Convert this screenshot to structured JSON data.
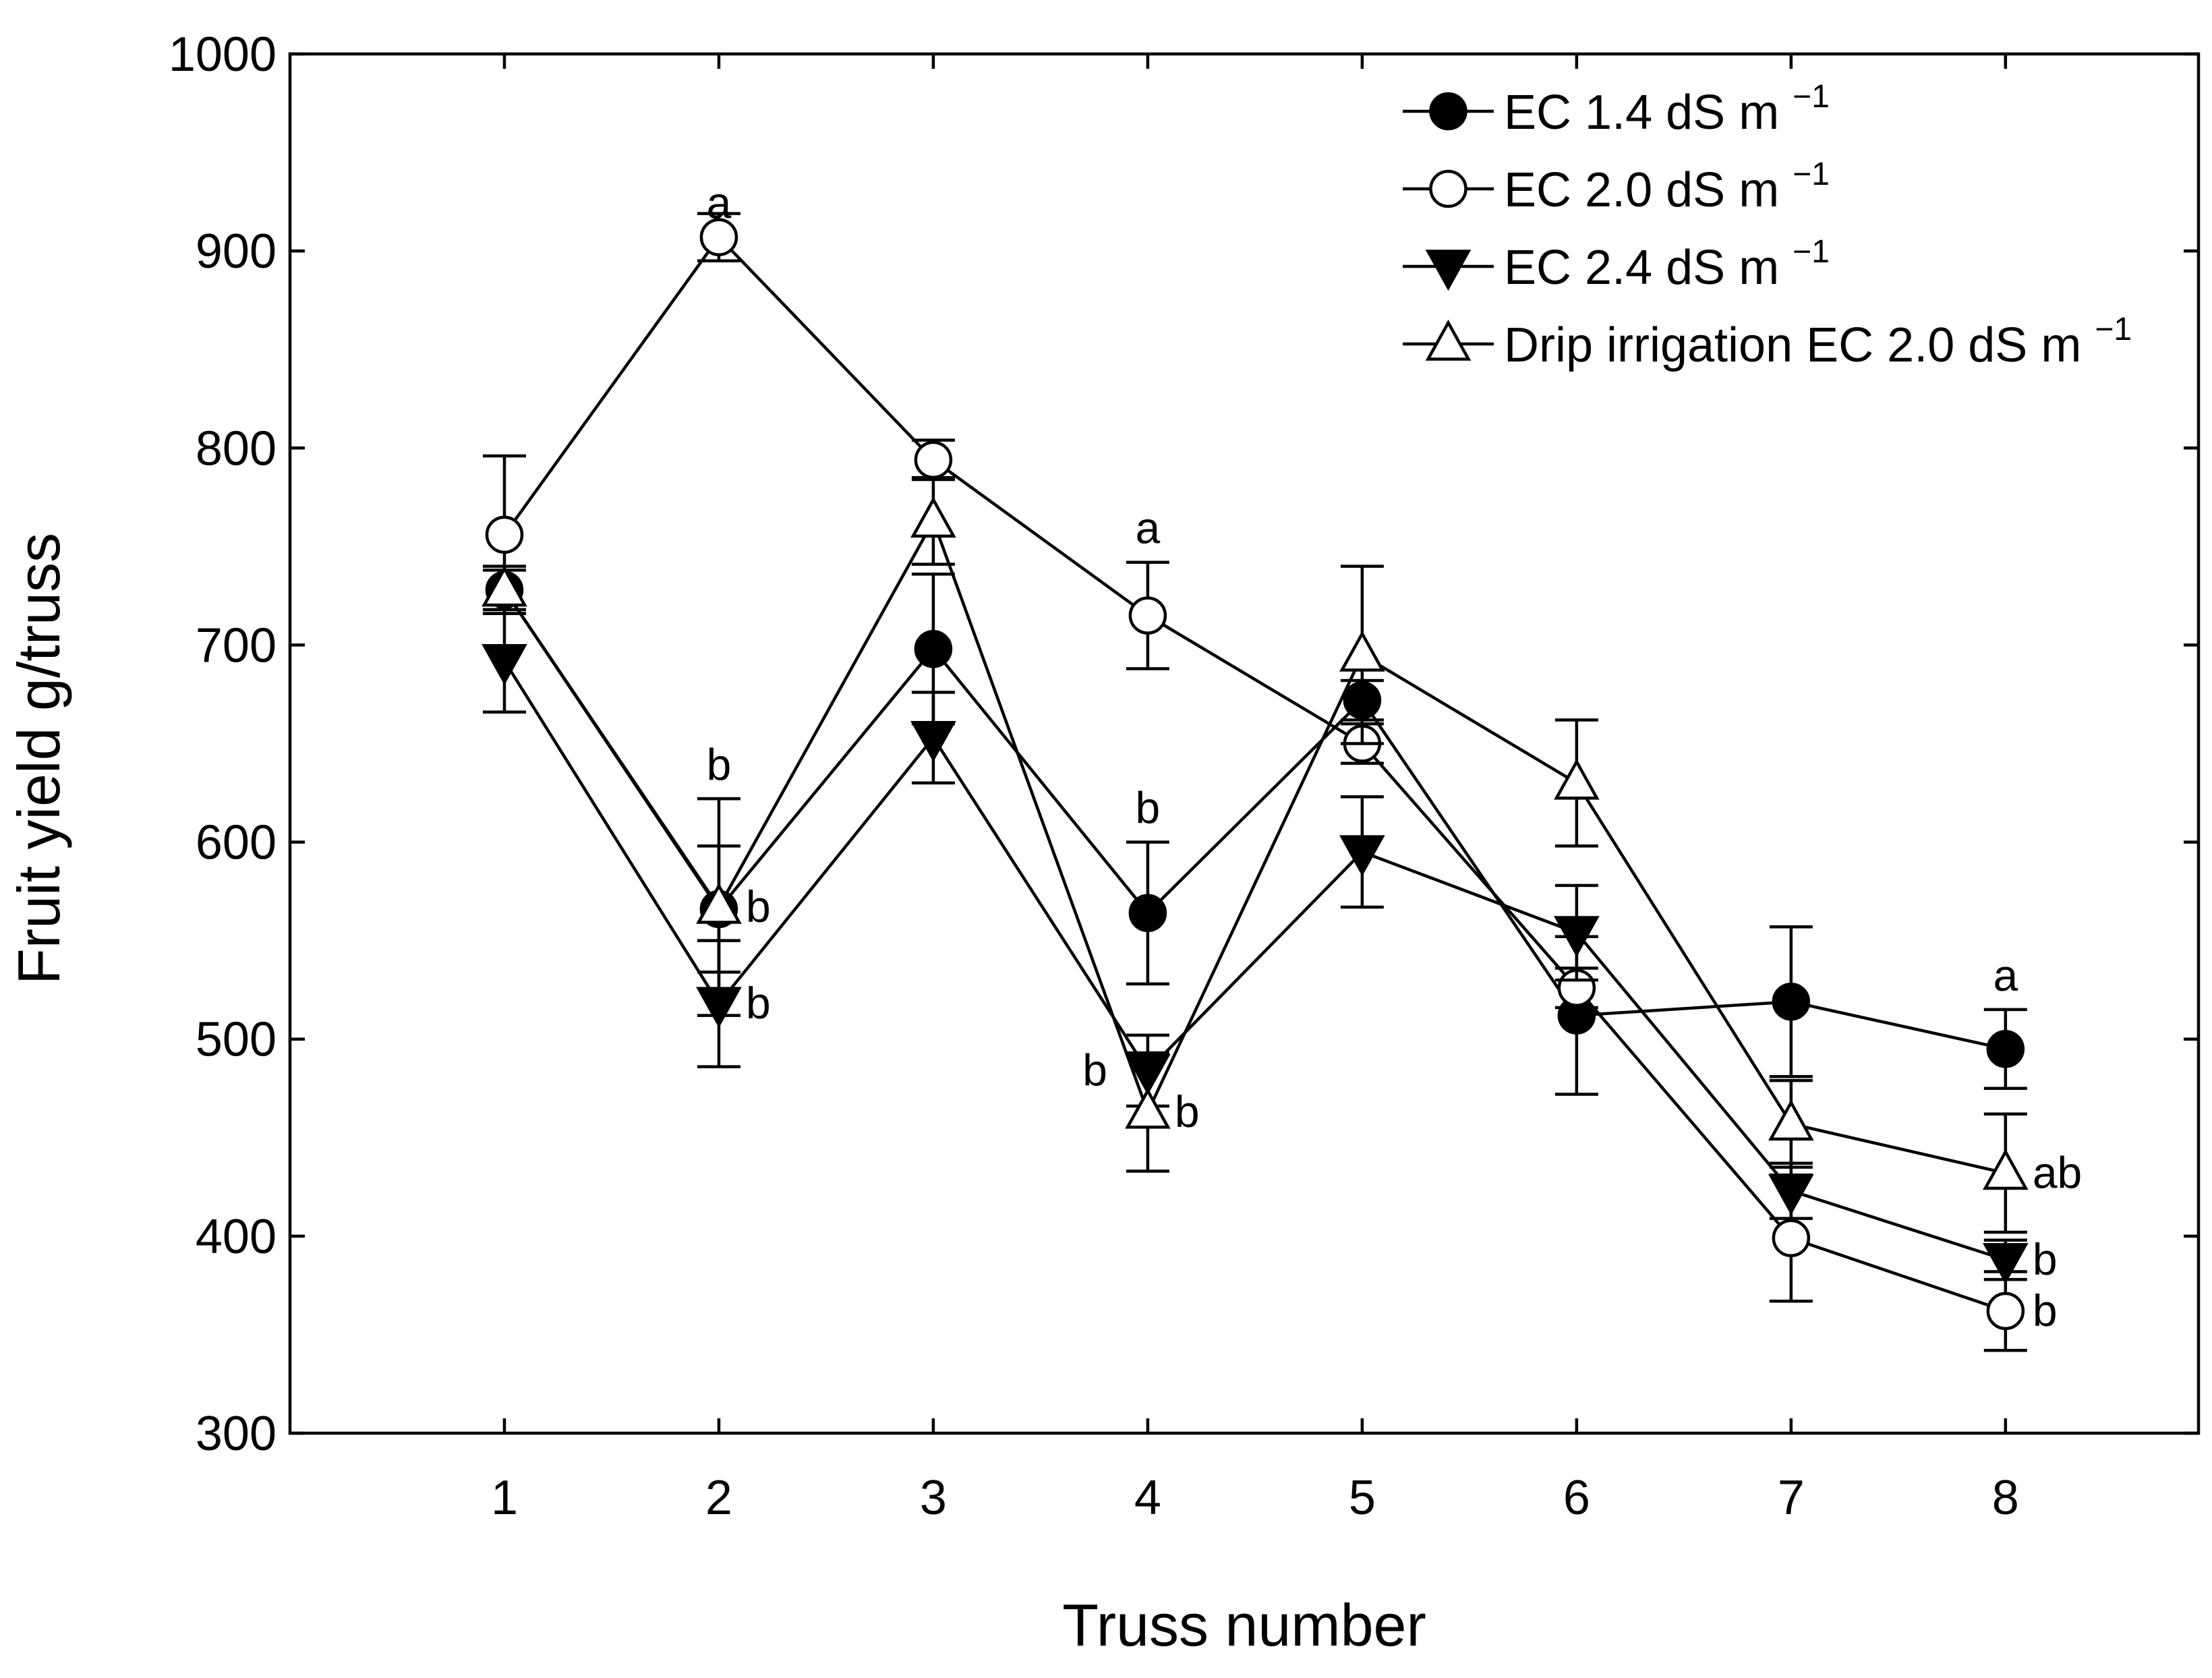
{
  "chart_data": {
    "type": "line",
    "title": "",
    "xlabel": "Truss number",
    "ylabel": "Fruit yield g/truss",
    "x": [
      1,
      2,
      3,
      4,
      5,
      6,
      7,
      8
    ],
    "xlim": [
      0.0,
      8.9
    ],
    "ylim": [
      300,
      1000
    ],
    "yticks": [
      300,
      400,
      500,
      600,
      700,
      800,
      900,
      1000
    ],
    "xticks": [
      1,
      2,
      3,
      4,
      5,
      6,
      7,
      8
    ],
    "grid": false,
    "legend_position": "top-right",
    "series": [
      {
        "name": "EC 1.4 dS m",
        "unit_exponent": "−1",
        "marker": "filled-circle",
        "values": [
          728,
          566,
          698,
          564,
          672,
          512,
          519,
          495
        ],
        "errors": [
          12,
          32,
          38,
          36,
          10,
          40,
          38,
          20
        ]
      },
      {
        "name": "EC 2.0 dS m",
        "unit_exponent": "−1",
        "marker": "open-circle",
        "values": [
          756,
          907,
          794,
          715,
          650,
          526,
          399,
          362
        ],
        "errors": [
          40,
          12,
          10,
          27,
          10,
          10,
          32,
          20
        ]
      },
      {
        "name": "EC 2.4 dS m",
        "unit_exponent": "−1",
        "marker": "filled-triangle-down",
        "values": [
          692,
          518,
          653,
          484,
          595,
          554,
          423,
          388
        ],
        "errors": [
          26,
          32,
          23,
          18,
          28,
          24,
          14,
          10
        ]
      },
      {
        "name": "Drip irrigation EC 2.0 dS m",
        "unit_exponent": "−1",
        "marker": "open-triangle-up",
        "values": [
          728,
          567,
          763,
          463,
          695,
          630,
          457,
          432
        ],
        "errors": [
          10,
          55,
          22,
          30,
          45,
          32,
          22,
          30
        ]
      }
    ],
    "annotations": [
      {
        "x": 2,
        "y": 907,
        "text": "a",
        "placement": "above"
      },
      {
        "x": 2,
        "y": 622,
        "text": "b",
        "placement": "above"
      },
      {
        "x": 2,
        "y": 567,
        "text": "b",
        "placement": "right"
      },
      {
        "x": 2,
        "y": 518,
        "text": "b",
        "placement": "right"
      },
      {
        "x": 4,
        "y": 742,
        "text": "a",
        "placement": "above"
      },
      {
        "x": 4,
        "y": 600,
        "text": "b",
        "placement": "above"
      },
      {
        "x": 4,
        "y": 484,
        "text": "b",
        "placement": "left"
      },
      {
        "x": 4,
        "y": 463,
        "text": "b",
        "placement": "right"
      },
      {
        "x": 8,
        "y": 515,
        "text": "a",
        "placement": "above"
      },
      {
        "x": 8,
        "y": 432,
        "text": "ab",
        "placement": "right"
      },
      {
        "x": 8,
        "y": 388,
        "text": "b",
        "placement": "right"
      },
      {
        "x": 8,
        "y": 362,
        "text": "b",
        "placement": "right"
      }
    ]
  }
}
